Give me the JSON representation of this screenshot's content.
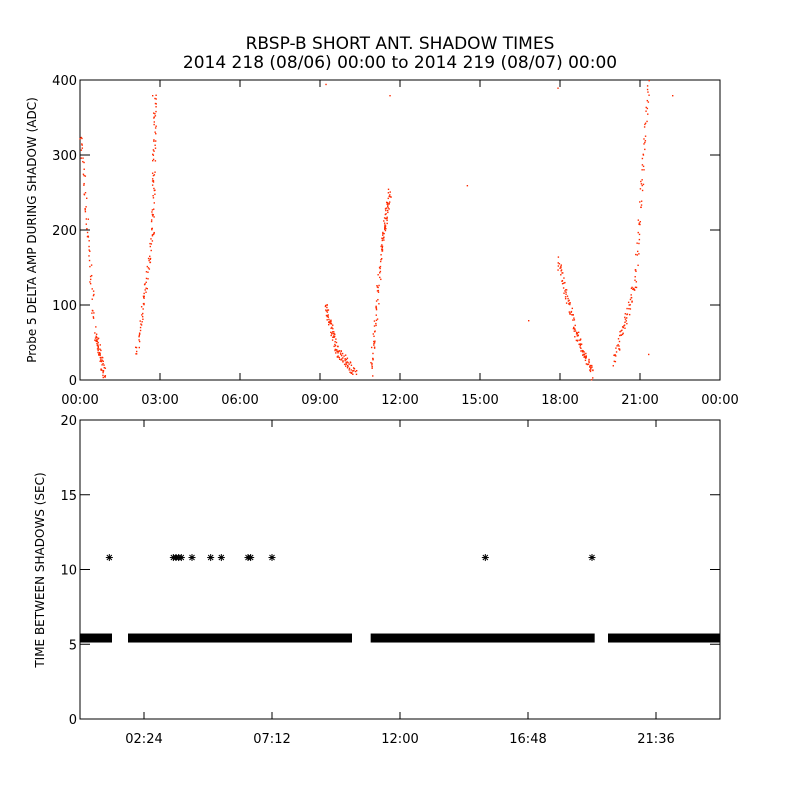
{
  "title": "RBSP-B SHORT ANT. SHADOW TIMES",
  "subtitle": "2014 218 (08/06) 00:00 to 2014 219 (08/07) 00:00",
  "colors": {
    "series_top": "#ff2a00",
    "series_bottom": "#000000",
    "axes": "#000000"
  },
  "chart_data": [
    {
      "type": "scatter",
      "ylabel": "Probe 5 DELTA AMP DURING SHADOW (ADC)",
      "xlim": [
        0,
        24
      ],
      "ylim": [
        0,
        400
      ],
      "x_tick_labels": [
        "00:00",
        "03:00",
        "06:00",
        "09:00",
        "12:00",
        "15:00",
        "18:00",
        "21:00",
        "00:00"
      ],
      "x_tick_hours": [
        0,
        3,
        6,
        9,
        12,
        15,
        18,
        21,
        24
      ],
      "y_tick_labels": [
        "0",
        "100",
        "200",
        "300",
        "400"
      ],
      "y_tick_values": [
        0,
        100,
        200,
        300,
        400
      ],
      "series": [
        {
          "color": "#ff2a00",
          "segments": [
            {
              "from": [
                0.0,
                330
              ],
              "to": [
                0.55,
                60
              ],
              "to2": [
                0.9,
                8
              ]
            },
            {
              "from": [
                2.1,
                35
              ],
              "to": [
                2.7,
                190
              ],
              "to2": [
                2.8,
                380
              ]
            },
            {
              "from": [
                9.2,
                100
              ],
              "to": [
                9.6,
                40
              ],
              "to2": [
                10.3,
                10
              ]
            },
            {
              "from": [
                10.9,
                10
              ],
              "to": [
                11.3,
                180
              ],
              "to2": [
                11.6,
                250
              ]
            },
            {
              "from": [
                17.9,
                160
              ],
              "to": [
                18.6,
                60
              ],
              "to2": [
                19.2,
                8
              ]
            },
            {
              "from": [
                20.0,
                25
              ],
              "to": [
                20.8,
                130
              ],
              "to2": [
                21.3,
                400
              ]
            }
          ],
          "scatter": [
            [
              2.7,
              380
            ],
            [
              9.2,
              395
            ],
            [
              11.6,
              380
            ],
            [
              14.5,
              260
            ],
            [
              16.8,
              80
            ],
            [
              17.9,
              390
            ],
            [
              21.3,
              35
            ],
            [
              22.2,
              380
            ]
          ]
        }
      ]
    },
    {
      "type": "scatter",
      "ylabel": "TIME BETWEEN SHADOWS (SEC)",
      "xlim": [
        0,
        24
      ],
      "ylim": [
        0,
        20
      ],
      "x_tick_labels": [
        "02:24",
        "07:12",
        "12:00",
        "16:48",
        "21:36"
      ],
      "x_tick_hours": [
        2.4,
        7.2,
        12.0,
        16.8,
        21.6
      ],
      "y_tick_labels": [
        "0",
        "5",
        "10",
        "15",
        "20"
      ],
      "y_tick_values": [
        0,
        5,
        10,
        15,
        20
      ],
      "baseline_value": 5.45,
      "baseline_ranges": [
        [
          0.0,
          1.2
        ],
        [
          1.8,
          10.2
        ],
        [
          10.9,
          19.3
        ],
        [
          19.8,
          24.0
        ]
      ],
      "series": [
        {
          "color": "#000000",
          "outliers": [
            [
              1.1,
              10.8
            ],
            [
              3.5,
              10.8
            ],
            [
              3.6,
              10.8
            ],
            [
              3.7,
              10.8
            ],
            [
              3.8,
              10.8
            ],
            [
              4.2,
              10.8
            ],
            [
              4.9,
              10.8
            ],
            [
              5.3,
              10.8
            ],
            [
              6.3,
              10.8
            ],
            [
              6.4,
              10.8
            ],
            [
              7.2,
              10.8
            ],
            [
              15.2,
              10.8
            ],
            [
              19.2,
              10.8
            ]
          ]
        }
      ]
    }
  ]
}
